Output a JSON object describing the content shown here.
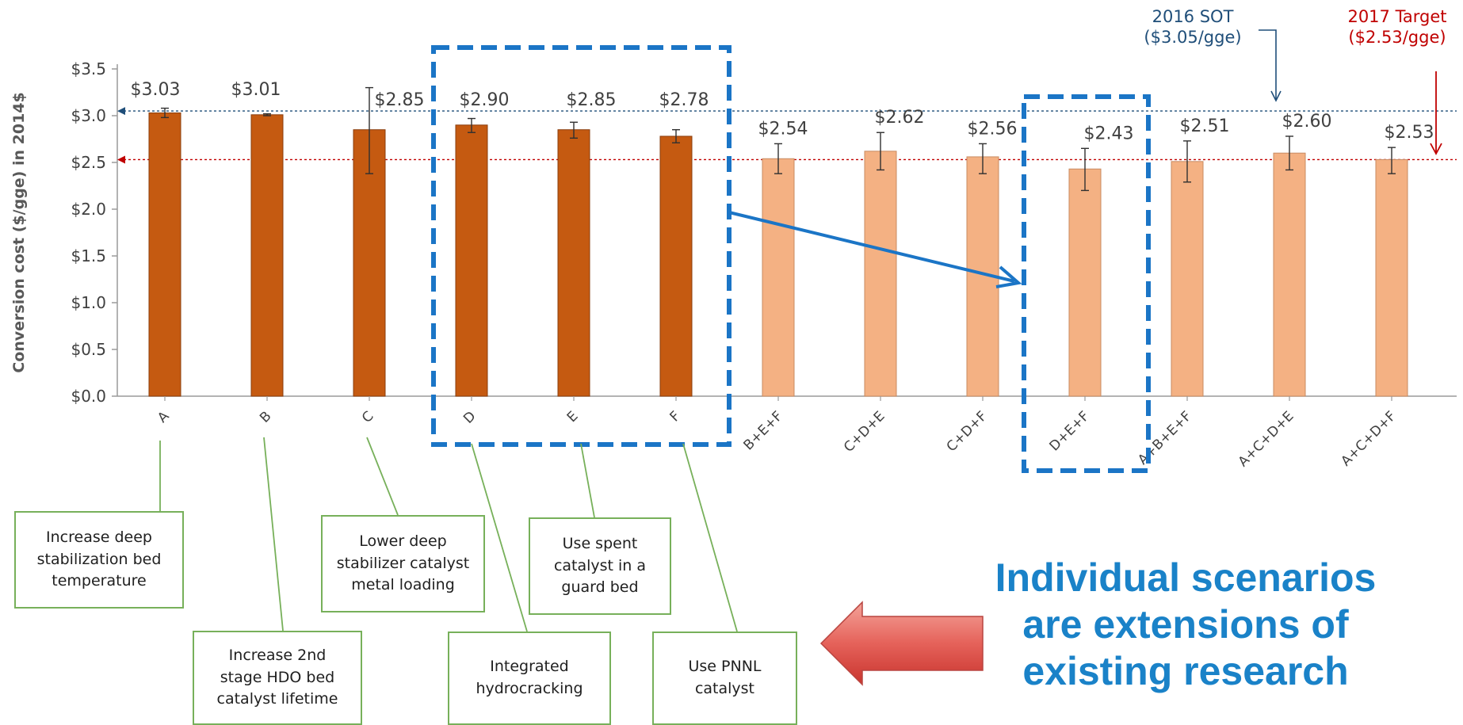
{
  "chart_data": {
    "type": "bar",
    "ylabel": "Conversion cost ($/gge) in 2014$",
    "ylim": [
      0,
      3.5
    ],
    "yticks": [
      "$0.0",
      "$0.5",
      "$1.0",
      "$1.5",
      "$2.0",
      "$2.5",
      "$3.0",
      "$3.5"
    ],
    "grid": false,
    "categories": [
      "A",
      "B",
      "C",
      "D",
      "E",
      "F",
      "B+E+F",
      "C+D+E",
      "C+D+F",
      "D+E+F",
      "A+B+E+F",
      "A+C+D+E",
      "A+C+D+F"
    ],
    "values": [
      3.03,
      3.01,
      2.85,
      2.9,
      2.85,
      2.78,
      2.54,
      2.62,
      2.56,
      2.43,
      2.51,
      2.6,
      2.53
    ],
    "data_labels": [
      "$3.03",
      "$3.01",
      "$2.85",
      "$2.90",
      "$2.85",
      "$2.78",
      "$2.54",
      "$2.62",
      "$2.56",
      "$2.43",
      "$2.51",
      "$2.60",
      "$2.53"
    ],
    "error_low": [
      2.98,
      3.0,
      2.38,
      2.82,
      2.76,
      2.71,
      2.38,
      2.42,
      2.38,
      2.2,
      2.29,
      2.42,
      2.38
    ],
    "error_high": [
      3.08,
      3.02,
      3.3,
      2.97,
      2.93,
      2.85,
      2.7,
      2.82,
      2.7,
      2.65,
      2.73,
      2.78,
      2.66
    ],
    "bar_colors": [
      "#c55a11",
      "#c55a11",
      "#c55a11",
      "#c55a11",
      "#c55a11",
      "#c55a11",
      "#f4b183",
      "#f4b183",
      "#f4b183",
      "#f4b183",
      "#f4b183",
      "#f4b183",
      "#f4b183"
    ],
    "reference_lines": [
      {
        "label": "2016 SOT\n($3.05/gge)",
        "value": 3.05,
        "color": "#1f4e79"
      },
      {
        "label": "2017 Target\n($2.53/gge)",
        "value": 2.53,
        "color": "#c00000"
      }
    ]
  },
  "annotations": {
    "scenario_notes": [
      {
        "category": "A",
        "text": "Increase deep\nstabilization bed\ntemperature"
      },
      {
        "category": "B",
        "text": "Increase 2nd\nstage HDO bed\ncatalyst lifetime"
      },
      {
        "category": "C",
        "text": "Lower deep\nstabilizer catalyst\nmetal loading"
      },
      {
        "category": "D",
        "text": "Integrated\nhydrocracking"
      },
      {
        "category": "E",
        "text": "Use spent\ncatalyst in a\nguard bed"
      },
      {
        "category": "F",
        "text": "Use PNNL\ncatalyst"
      }
    ],
    "callout": "Individual scenarios\nare extensions of\nexisting research"
  },
  "colors": {
    "dark_bar": "#c55a11",
    "light_bar": "#f4b183",
    "highlight_box": "#1b75c6",
    "note_border": "#77b05a",
    "callout_text": "#1a82c8",
    "sot_line": "#1f4e79",
    "target_line": "#c00000"
  }
}
